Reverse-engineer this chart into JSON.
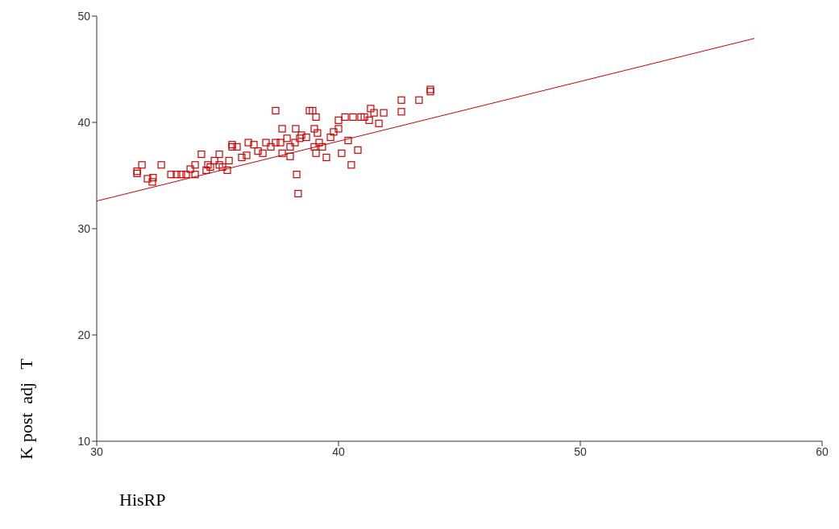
{
  "chart_data": {
    "type": "scatter",
    "xlabel": "HisRP",
    "ylabel": "K post  adj   T",
    "xlim": [
      30,
      60
    ],
    "ylim": [
      10,
      50
    ],
    "xticks": [
      30,
      40,
      50,
      60
    ],
    "yticks": [
      10,
      20,
      30,
      40,
      50
    ],
    "series": [
      {
        "marker": "square",
        "color": "#cc0000",
        "x": [
          31.67,
          31.67,
          31.87,
          32.1,
          32.3,
          32.33,
          32.67,
          33.07,
          33.3,
          33.5,
          33.7,
          33.87,
          34.07,
          34.07,
          34.33,
          34.53,
          34.6,
          34.7,
          34.87,
          35.07,
          35.07,
          35.2,
          35.4,
          35.47,
          35.6,
          35.6,
          35.8,
          36.0,
          36.2,
          36.27,
          36.5,
          36.67,
          36.87,
          37.0,
          37.2,
          37.4,
          37.4,
          37.6,
          37.67,
          37.67,
          37.87,
          38.0,
          38.0,
          38.2,
          38.23,
          38.27,
          38.33,
          38.4,
          38.47,
          38.67,
          38.8,
          38.93,
          39.0,
          39.0,
          39.07,
          39.07,
          39.13,
          39.2,
          39.33,
          39.5,
          39.67,
          39.8,
          40.0,
          40.0,
          40.13,
          40.27,
          40.4,
          40.53,
          40.6,
          40.8,
          40.93,
          41.07,
          41.27,
          41.33,
          41.47,
          41.67,
          41.87,
          42.6,
          42.6,
          43.33,
          43.8,
          43.8
        ],
        "values": [
          35.2,
          35.4,
          36.0,
          34.7,
          34.4,
          34.8,
          36.0,
          35.1,
          35.1,
          35.1,
          35.1,
          35.6,
          35.1,
          36.0,
          37.0,
          35.5,
          36.0,
          35.8,
          36.4,
          37.0,
          36.0,
          35.8,
          35.5,
          36.4,
          37.7,
          37.9,
          37.7,
          36.7,
          36.9,
          38.1,
          37.9,
          37.3,
          37.1,
          38.1,
          37.7,
          41.1,
          38.1,
          38.1,
          39.4,
          37.1,
          38.5,
          37.7,
          36.8,
          38.1,
          39.4,
          35.1,
          33.3,
          38.5,
          38.8,
          38.6,
          41.1,
          41.1,
          39.4,
          37.7,
          40.5,
          37.1,
          39.0,
          38.1,
          37.7,
          36.7,
          38.6,
          39.1,
          39.4,
          40.2,
          37.1,
          40.5,
          38.3,
          36.0,
          40.5,
          37.4,
          40.5,
          40.5,
          40.2,
          41.3,
          40.9,
          39.9,
          40.9,
          42.1,
          41.0,
          42.1,
          42.9,
          43.1
        ]
      },
      {
        "type": "line",
        "marker": "none",
        "color": "#cc0000",
        "x": [
          30,
          57.2
        ],
        "values": [
          32.6,
          47.9
        ]
      }
    ]
  }
}
